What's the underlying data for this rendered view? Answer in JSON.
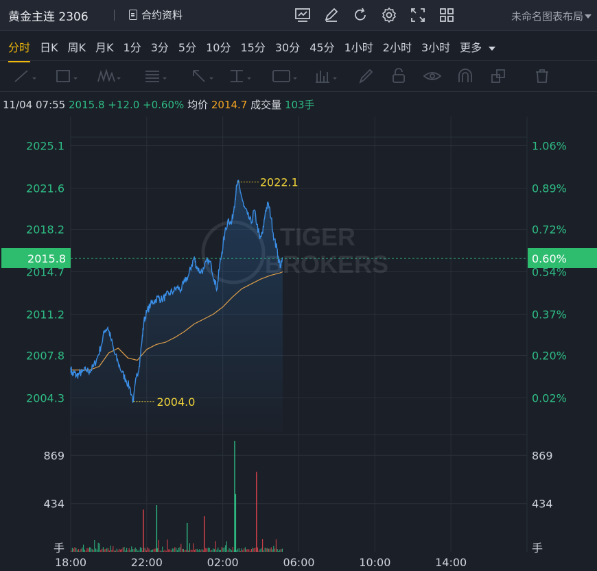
{
  "header": {
    "symbol_title": "黄金主连 2306",
    "contract_info_label": "合约资料",
    "layout_label": "未命名图表布局",
    "tool_icons": [
      "chart-icon",
      "pencil-icon",
      "refresh-icon",
      "gear-icon",
      "fullscreen-icon",
      "grid-icon"
    ]
  },
  "periods": {
    "items": [
      "分时",
      "日K",
      "周K",
      "月K",
      "1分",
      "3分",
      "5分",
      "10分",
      "15分",
      "30分",
      "45分",
      "1小时",
      "2小时",
      "3小时",
      "更多"
    ],
    "active": "分时"
  },
  "drawing_tools": [
    "line-tool-icon",
    "rect-tool-icon",
    "wave-tool-icon",
    "fib-tool-icon",
    "arrow-tool-icon",
    "measure-tool-icon",
    "text-tool-icon",
    "bar-tool-icon",
    "brush-icon",
    "lock-icon",
    "eye-icon",
    "magnet-icon",
    "clone-icon",
    "trash-icon"
  ],
  "quote": {
    "datetime": "11/04 07:55",
    "price": "2015.8",
    "change": "+12.0",
    "change_pct": "+0.60%",
    "avg_label": "均价",
    "avg_value": "2014.7",
    "volume_label": "成交量",
    "volume_value": "103手"
  },
  "watermark": "TIGER BROKERS",
  "colors": {
    "up": "#2ebd85",
    "price_line": "#3a8ee6",
    "avg_line": "#e0a04a",
    "label_highlight": "#f0d43a",
    "tag_bg": "#2ebd6f"
  },
  "chart_data": {
    "type": "line",
    "price_axis_labels": [
      "2025.1",
      "2021.6",
      "2018.2",
      "2014.7",
      "2011.2",
      "2007.8",
      "2004.3"
    ],
    "pct_axis_labels": [
      "1.06%",
      "0.89%",
      "0.72%",
      "0.54%",
      "0.37%",
      "0.20%",
      "0.02%"
    ],
    "current_price_tag": "2015.8",
    "current_pct_tag": "0.60%",
    "high_label": "2022.1",
    "low_label": "2004.0",
    "volume_axis_labels": [
      "869",
      "434",
      "手"
    ],
    "x_ticks": [
      "18:00",
      "22:00",
      "02:00",
      "06:00",
      "10:00",
      "14:00"
    ],
    "ylim": [
      2001.5,
      2027.5
    ],
    "volume_ylim": [
      0,
      1050
    ],
    "price_points": [
      [
        0,
        2006.8
      ],
      [
        0.1,
        2006.2
      ],
      [
        0.2,
        2006.4
      ],
      [
        0.3,
        2006.1
      ],
      [
        0.45,
        2006.3
      ],
      [
        0.6,
        2006.4
      ],
      [
        0.8,
        2006.6
      ],
      [
        1.0,
        2006.5
      ],
      [
        1.2,
        2006.9
      ],
      [
        1.4,
        2007.6
      ],
      [
        1.6,
        2008.6
      ],
      [
        1.8,
        2009.9
      ],
      [
        1.95,
        2010.1
      ],
      [
        2.1,
        2009.3
      ],
      [
        2.3,
        2008.0
      ],
      [
        2.5,
        2007.2
      ],
      [
        2.7,
        2006.4
      ],
      [
        2.9,
        2005.8
      ],
      [
        3.1,
        2005.2
      ],
      [
        3.3,
        2004.0
      ],
      [
        3.45,
        2006.0
      ],
      [
        3.6,
        2006.9
      ],
      [
        3.75,
        2009.0
      ],
      [
        3.85,
        2010.6
      ],
      [
        4.0,
        2011.4
      ],
      [
        4.2,
        2012.0
      ],
      [
        4.4,
        2012.3
      ],
      [
        4.6,
        2012.6
      ],
      [
        4.8,
        2012.4
      ],
      [
        5.0,
        2012.7
      ],
      [
        5.2,
        2012.9
      ],
      [
        5.4,
        2013.1
      ],
      [
        5.6,
        2013.4
      ],
      [
        5.8,
        2013.2
      ],
      [
        6.0,
        2013.9
      ],
      [
        6.2,
        2014.4
      ],
      [
        6.35,
        2015.2
      ],
      [
        6.5,
        2015.9
      ],
      [
        6.6,
        2015.2
      ],
      [
        6.8,
        2014.7
      ],
      [
        7.0,
        2014.9
      ],
      [
        7.2,
        2015.7
      ],
      [
        7.4,
        2015.2
      ],
      [
        7.55,
        2014.1
      ],
      [
        7.7,
        2013.3
      ],
      [
        7.8,
        2014.8
      ],
      [
        7.95,
        2016.3
      ],
      [
        8.1,
        2017.8
      ],
      [
        8.3,
        2019.1
      ],
      [
        8.45,
        2018.6
      ],
      [
        8.6,
        2020.1
      ],
      [
        8.7,
        2021.4
      ],
      [
        8.8,
        2022.1
      ],
      [
        8.95,
        2021.2
      ],
      [
        9.1,
        2020.1
      ],
      [
        9.3,
        2019.4
      ],
      [
        9.5,
        2018.7
      ],
      [
        9.65,
        2019.8
      ],
      [
        9.8,
        2018.6
      ],
      [
        9.95,
        2017.4
      ],
      [
        10.1,
        2017.9
      ],
      [
        10.25,
        2019.8
      ],
      [
        10.4,
        2020.3
      ],
      [
        10.55,
        2019.1
      ],
      [
        10.7,
        2017.4
      ],
      [
        10.85,
        2016.6
      ],
      [
        10.95,
        2015.6
      ],
      [
        11.05,
        2015.1
      ],
      [
        11.15,
        2015.8
      ]
    ],
    "avg_points": [
      [
        0,
        2006.6
      ],
      [
        1.0,
        2006.6
      ],
      [
        1.5,
        2006.9
      ],
      [
        2.0,
        2008.0
      ],
      [
        2.5,
        2008.4
      ],
      [
        3.0,
        2007.6
      ],
      [
        3.5,
        2007.4
      ],
      [
        4.0,
        2008.3
      ],
      [
        4.5,
        2008.7
      ],
      [
        5.0,
        2008.9
      ],
      [
        5.5,
        2009.3
      ],
      [
        6.0,
        2009.8
      ],
      [
        6.5,
        2010.4
      ],
      [
        7.0,
        2010.8
      ],
      [
        7.5,
        2011.2
      ],
      [
        8.0,
        2011.8
      ],
      [
        8.5,
        2012.6
      ],
      [
        9.0,
        2013.3
      ],
      [
        9.5,
        2013.7
      ],
      [
        10.0,
        2014.1
      ],
      [
        10.5,
        2014.4
      ],
      [
        11.0,
        2014.6
      ],
      [
        11.15,
        2014.7
      ]
    ]
  }
}
